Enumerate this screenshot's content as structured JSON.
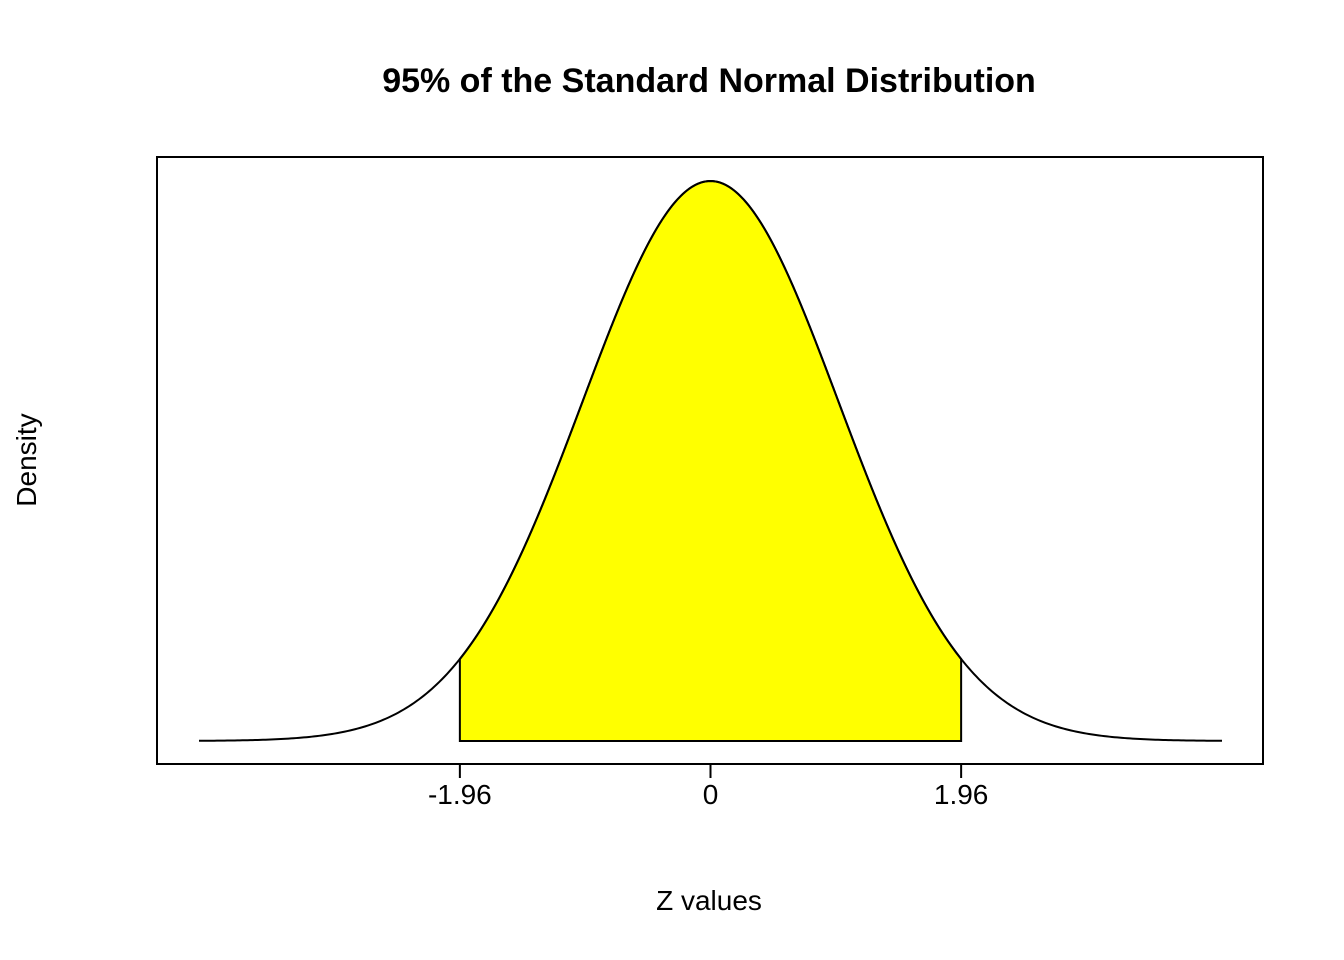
{
  "chart_data": {
    "type": "area",
    "title": "95% of the Standard Normal Distribution",
    "xlabel": "Z values",
    "ylabel": "Density",
    "xlim": [
      -4.0,
      4.0
    ],
    "ylim": [
      0,
      0.4
    ],
    "x_ticks": [
      -1.96,
      0,
      1.96
    ],
    "x_tick_labels": [
      "-1.96",
      "0",
      "1.96"
    ],
    "y_ticks_shown": false,
    "grid": false,
    "series": [
      {
        "curve": "standard normal density",
        "x_range": [
          -4.0,
          4.0
        ],
        "line_color": "#000000"
      }
    ],
    "shaded_region": {
      "from": -1.96,
      "to": 1.96,
      "fill_color": "#ffff00",
      "area_fraction": 0.95
    }
  }
}
